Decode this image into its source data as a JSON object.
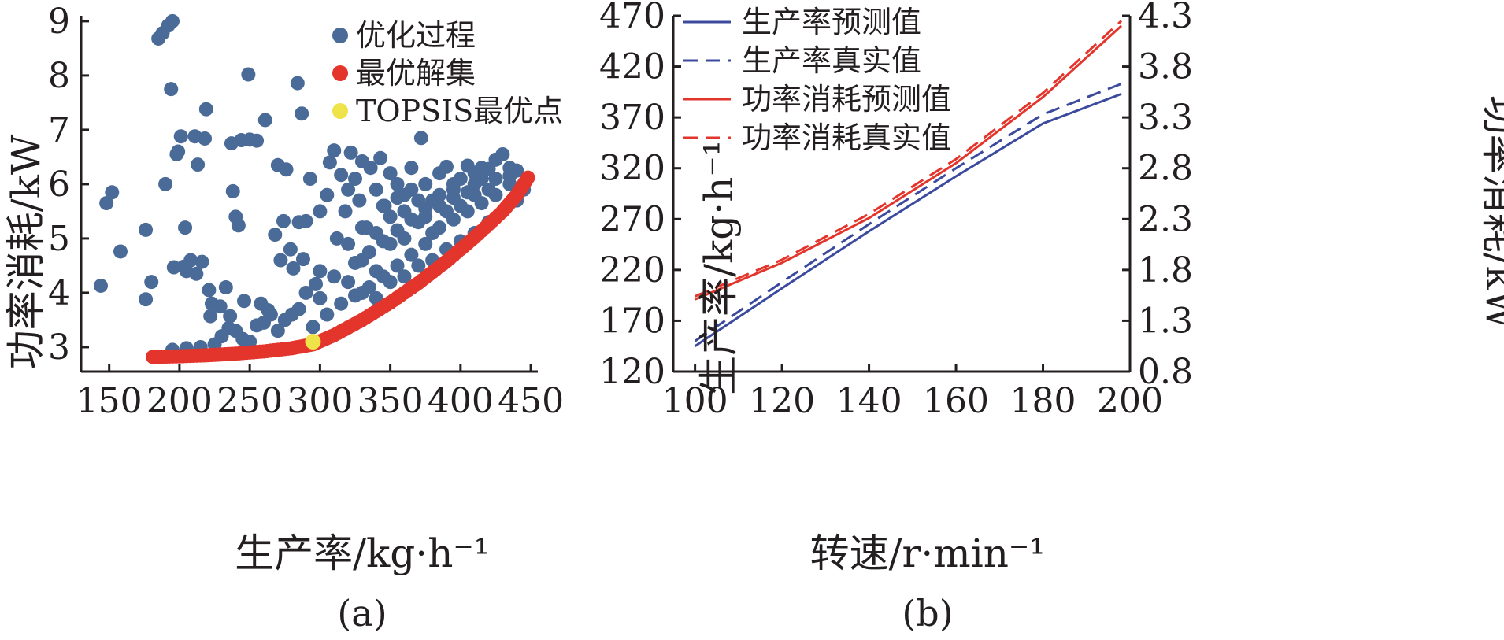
{
  "chart_data": [
    {
      "type": "scatter",
      "panel_label": "(a)",
      "xlabel": "生产率/kg·h⁻¹",
      "ylabel": "功率消耗/kW",
      "xlim": [
        130,
        455
      ],
      "ylim": [
        2.55,
        9.1
      ],
      "xticks": [
        "150",
        "200",
        "250",
        "300",
        "350",
        "400",
        "450"
      ],
      "yticks": [
        "3",
        "4",
        "5",
        "6",
        "7",
        "8",
        "9"
      ],
      "legend_position": "top-right",
      "colors": {
        "process": "#4a6b97",
        "pareto": "#e3352b",
        "topsis": "#eee44a"
      },
      "series": [
        {
          "name": "优化过程",
          "points": [
            [
              144,
              4.13
            ],
            [
              148,
              5.65
            ],
            [
              152,
              5.85
            ],
            [
              158,
              4.76
            ],
            [
              176,
              3.88
            ],
            [
              176,
              5.16
            ],
            [
              180,
              4.2
            ],
            [
              185,
              8.68
            ],
            [
              188,
              8.78
            ],
            [
              190,
              6.0
            ],
            [
              192,
              8.92
            ],
            [
              195,
              9.0
            ],
            [
              194,
              7.75
            ],
            [
              196,
              4.47
            ],
            [
              198,
              6.55
            ],
            [
              199,
              6.6
            ],
            [
              201,
              6.88
            ],
            [
              203,
              4.48
            ],
            [
              204,
              5.2
            ],
            [
              205,
              4.4
            ],
            [
              208,
              4.6
            ],
            [
              211,
              6.88
            ],
            [
              212,
              4.35
            ],
            [
              213,
              6.36
            ],
            [
              216,
              4.57
            ],
            [
              218,
              6.84
            ],
            [
              219,
              7.38
            ],
            [
              221,
              4.05
            ],
            [
              222,
              3.57
            ],
            [
              223,
              3.8
            ],
            [
              229,
              3.75
            ],
            [
              233,
              4.1
            ],
            [
              236,
              3.57
            ],
            [
              237,
              6.75
            ],
            [
              238,
              5.87
            ],
            [
              240,
              5.4
            ],
            [
              242,
              5.24
            ],
            [
              244,
              6.81
            ],
            [
              246,
              3.85
            ],
            [
              249,
              8.02
            ],
            [
              250,
              6.82
            ],
            [
              255,
              6.8
            ],
            [
              258,
              3.8
            ],
            [
              261,
              7.18
            ],
            [
              263,
              3.68
            ],
            [
              268,
              5.07
            ],
            [
              270,
              6.35
            ],
            [
              272,
              4.6
            ],
            [
              274,
              5.32
            ],
            [
              276,
              6.27
            ],
            [
              279,
              4.8
            ],
            [
              281,
              4.45
            ],
            [
              284,
              7.86
            ],
            [
              285,
              5.3
            ],
            [
              287,
              7.3
            ],
            [
              288,
              4.62
            ],
            [
              290,
              5.32
            ],
            [
              293,
              6.1
            ],
            [
              295,
              3.37
            ],
            [
              297,
              4.16
            ],
            [
              300,
              5.5
            ],
            [
              305,
              5.8
            ],
            [
              307,
              6.4
            ],
            [
              310,
              6.62
            ],
            [
              312,
              5.0
            ],
            [
              315,
              6.17
            ],
            [
              318,
              5.5
            ],
            [
              320,
              5.9
            ],
            [
              322,
              6.58
            ],
            [
              325,
              6.1
            ],
            [
              328,
              5.7
            ],
            [
              330,
              6.42
            ],
            [
              333,
              5.2
            ],
            [
              336,
              6.3
            ],
            [
              340,
              5.9
            ],
            [
              343,
              6.48
            ],
            [
              346,
              5.6
            ],
            [
              350,
              6.2
            ],
            [
              355,
              6.0
            ],
            [
              360,
              5.8
            ],
            [
              365,
              6.3
            ],
            [
              372,
              6.85
            ],
            [
              375,
              6.0
            ],
            [
              380,
              5.7
            ],
            [
              385,
              6.2
            ],
            [
              390,
              6.32
            ],
            [
              395,
              6.0
            ],
            [
              400,
              6.1
            ],
            [
              405,
              6.34
            ],
            [
              410,
              6.2
            ],
            [
              415,
              6.3
            ],
            [
              420,
              6.28
            ],
            [
              425,
              6.45
            ],
            [
              430,
              6.55
            ],
            [
              435,
              6.3
            ],
            [
              440,
              6.25
            ],
            [
              230,
              3.2
            ],
            [
              240,
              3.3
            ],
            [
              250,
              3.1
            ],
            [
              260,
              3.45
            ],
            [
              270,
              3.3
            ],
            [
              280,
              3.6
            ],
            [
              300,
              3.9
            ],
            [
              310,
              4.3
            ],
            [
              320,
              4.2
            ],
            [
              330,
              4.6
            ],
            [
              340,
              4.4
            ],
            [
              350,
              4.9
            ],
            [
              360,
              5.0
            ],
            [
              370,
              5.3
            ],
            [
              380,
              5.1
            ],
            [
              390,
              5.5
            ],
            [
              400,
              5.6
            ],
            [
              410,
              5.8
            ],
            [
              420,
              5.9
            ],
            [
              305,
              3.6
            ],
            [
              315,
              3.8
            ],
            [
              325,
              3.95
            ],
            [
              335,
              4.1
            ],
            [
              345,
              4.3
            ],
            [
              355,
              4.5
            ],
            [
              365,
              4.7
            ],
            [
              375,
              4.9
            ],
            [
              385,
              5.2
            ],
            [
              395,
              5.35
            ],
            [
              405,
              5.5
            ],
            [
              415,
              5.65
            ],
            [
              425,
              5.8
            ],
            [
              435,
              6.0
            ],
            [
              320,
              4.9
            ],
            [
              330,
              5.2
            ],
            [
              340,
              5.1
            ],
            [
              350,
              5.4
            ],
            [
              360,
              5.5
            ],
            [
              370,
              5.7
            ],
            [
              345,
              5.6
            ],
            [
              355,
              5.75
            ],
            [
              365,
              5.9
            ],
            [
              375,
              5.4
            ],
            [
              385,
              5.8
            ],
            [
              395,
              5.9
            ],
            [
              410,
              6.0
            ],
            [
              300,
              4.4
            ],
            [
              290,
              4.0
            ],
            [
              285,
              3.7
            ],
            [
              275,
              3.5
            ],
            [
              265,
              3.6
            ],
            [
              255,
              3.4
            ],
            [
              245,
              3.15
            ],
            [
              235,
              3.35
            ],
            [
              225,
              3.05
            ],
            [
              215,
              3.0
            ],
            [
              205,
              2.98
            ],
            [
              195,
              2.95
            ],
            [
              330,
              4.0
            ],
            [
              340,
              3.9
            ],
            [
              350,
              4.2
            ],
            [
              360,
              4.3
            ],
            [
              370,
              4.5
            ],
            [
              380,
              4.6
            ],
            [
              390,
              4.8
            ],
            [
              400,
              4.95
            ],
            [
              410,
              5.1
            ],
            [
              420,
              5.3
            ],
            [
              430,
              5.5
            ],
            [
              440,
              5.7
            ],
            [
              445,
              5.9
            ],
            [
              325,
              4.55
            ],
            [
              335,
              4.75
            ],
            [
              345,
              4.95
            ],
            [
              355,
              5.15
            ],
            [
              365,
              5.35
            ],
            [
              375,
              5.55
            ],
            [
              385,
              5.6
            ],
            [
              395,
              5.75
            ],
            [
              405,
              5.85
            ],
            [
              415,
              6.1
            ],
            [
              425,
              6.1
            ],
            [
              435,
              6.15
            ]
          ]
        },
        {
          "name": "最优解集",
          "curve": [
            [
              181,
              2.82
            ],
            [
              200,
              2.83
            ],
            [
              220,
              2.85
            ],
            [
              240,
              2.88
            ],
            [
              260,
              2.92
            ],
            [
              280,
              2.98
            ],
            [
              295,
              3.05
            ],
            [
              310,
              3.22
            ],
            [
              330,
              3.5
            ],
            [
              350,
              3.82
            ],
            [
              370,
              4.18
            ],
            [
              390,
              4.58
            ],
            [
              410,
              5.02
            ],
            [
              430,
              5.5
            ],
            [
              440,
              5.8
            ],
            [
              448,
              6.12
            ]
          ]
        },
        {
          "name": "TOPSIS最优点",
          "points": [
            [
              295,
              3.1
            ]
          ]
        }
      ]
    },
    {
      "type": "line",
      "panel_label": "(b)",
      "xlabel": "转速/r·min⁻¹",
      "ylabel": "生产率/kg·h⁻¹",
      "y2label": "功率消耗/kW",
      "xlim": [
        95,
        200
      ],
      "ylim": [
        120,
        470
      ],
      "y2lim": [
        0.8,
        4.3
      ],
      "xticks": [
        "100",
        "120",
        "140",
        "160",
        "180",
        "200"
      ],
      "yticks": [
        "120",
        "170",
        "220",
        "270",
        "320",
        "370",
        "420",
        "470"
      ],
      "y2ticks": [
        "0.8",
        "1.3",
        "1.8",
        "2.3",
        "2.8",
        "3.3",
        "3.8",
        "4.3"
      ],
      "legend_position": "top-left",
      "series": [
        {
          "name": "生产率预测值",
          "axis": "left",
          "color": "#3c4a9e",
          "dash": false,
          "x": [
            100,
            120,
            140,
            160,
            180,
            198
          ],
          "y": [
            145,
            202,
            258,
            312,
            364,
            393
          ]
        },
        {
          "name": "生产率真实值",
          "axis": "left",
          "color": "#3c4a9e",
          "dash": true,
          "x": [
            100,
            120,
            140,
            160,
            180,
            198
          ],
          "y": [
            150,
            208,
            265,
            320,
            373,
            403
          ]
        },
        {
          "name": "功率消耗预测值",
          "axis": "right",
          "color": "#e3352b",
          "dash": false,
          "x": [
            100,
            120,
            140,
            160,
            180,
            198
          ],
          "y": [
            1.51,
            1.87,
            2.31,
            2.85,
            3.5,
            4.2
          ]
        },
        {
          "name": "功率消耗真实值",
          "axis": "right",
          "color": "#e3352b",
          "dash": true,
          "x": [
            100,
            120,
            140,
            160,
            180,
            198
          ],
          "y": [
            1.54,
            1.9,
            2.35,
            2.89,
            3.54,
            4.25
          ]
        }
      ]
    }
  ]
}
